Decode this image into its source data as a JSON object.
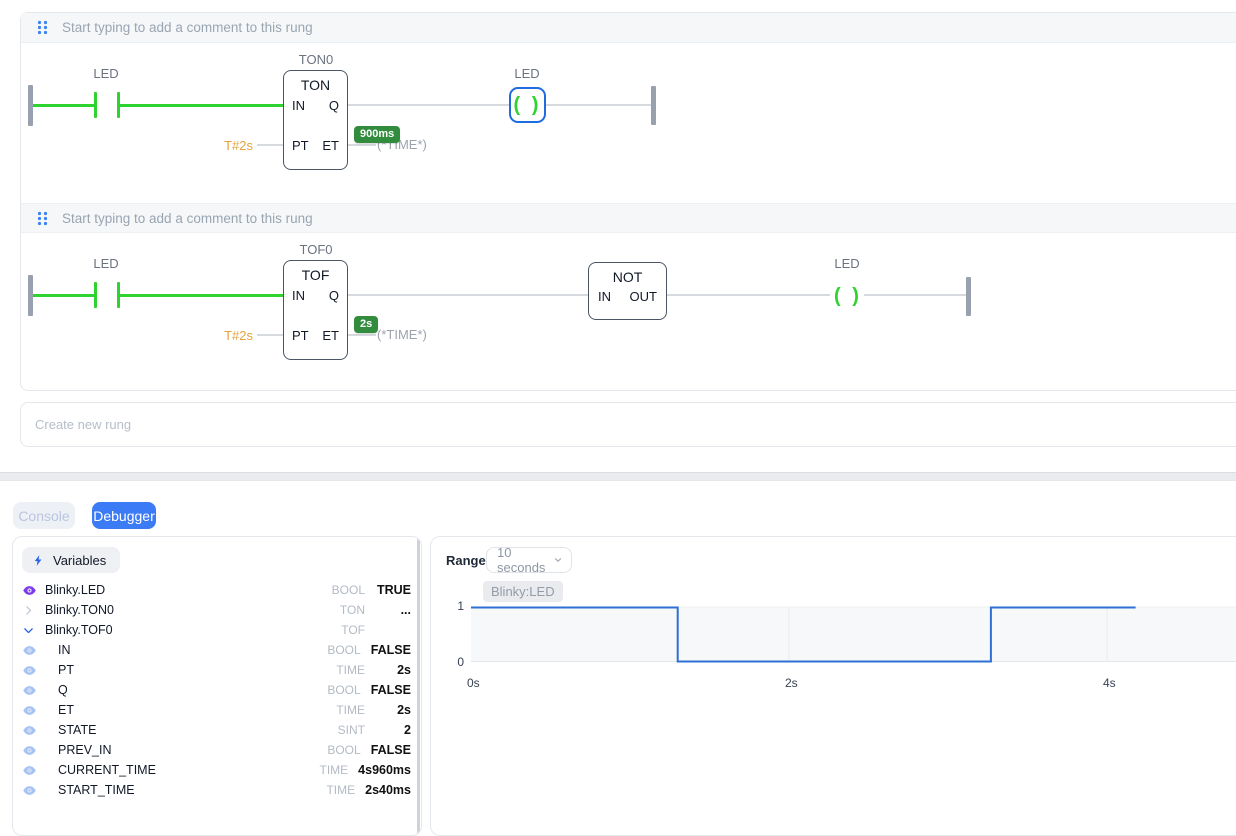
{
  "ladder": {
    "create_rung_placeholder": "Create new rung",
    "rungs": [
      {
        "comment": "Start typing to add a comment to this rung",
        "contact_label": "LED",
        "block": {
          "name": "TON0",
          "type": "TON",
          "port_in": "IN",
          "port_q": "Q",
          "port_pt": "PT",
          "port_et": "ET",
          "pt_value": "T#2s",
          "et_badge": "900ms",
          "et_comment": "(*TIME*)"
        },
        "coil_label": "LED",
        "coil_symbol": "( )"
      },
      {
        "comment": "Start typing to add a comment to this rung",
        "contact_label": "LED",
        "block": {
          "name": "TOF0",
          "type": "TOF",
          "port_in": "IN",
          "port_q": "Q",
          "port_pt": "PT",
          "port_et": "ET",
          "pt_value": "T#2s",
          "et_badge": "2s",
          "et_comment": "(*TIME*)"
        },
        "not_block": {
          "type": "NOT",
          "port_in": "IN",
          "port_out": "OUT"
        },
        "coil_label": "LED",
        "coil_symbol": "( )"
      }
    ]
  },
  "tabs": {
    "console_label": "Console",
    "debugger_label": "Debugger"
  },
  "variables_panel": {
    "header": "Variables",
    "rows": [
      {
        "name": "Blinky.LED",
        "type": "BOOL",
        "value": "TRUE",
        "icon": "eye-purple",
        "indent": 0
      },
      {
        "name": "Blinky.TON0",
        "type": "TON",
        "value": "...",
        "icon": "chevron-right",
        "indent": 0
      },
      {
        "name": "Blinky.TOF0",
        "type": "TOF",
        "value": "",
        "icon": "chevron-down",
        "indent": 0
      },
      {
        "name": "IN",
        "type": "BOOL",
        "value": "FALSE",
        "icon": "eye-blue",
        "indent": 1
      },
      {
        "name": "PT",
        "type": "TIME",
        "value": "2s",
        "icon": "eye-blue",
        "indent": 1
      },
      {
        "name": "Q",
        "type": "BOOL",
        "value": "FALSE",
        "icon": "eye-blue",
        "indent": 1
      },
      {
        "name": "ET",
        "type": "TIME",
        "value": "2s",
        "icon": "eye-blue",
        "indent": 1
      },
      {
        "name": "STATE",
        "type": "SINT",
        "value": "2",
        "icon": "eye-blue",
        "indent": 1
      },
      {
        "name": "PREV_IN",
        "type": "BOOL",
        "value": "FALSE",
        "icon": "eye-blue",
        "indent": 1
      },
      {
        "name": "CURRENT_TIME",
        "type": "TIME",
        "value": "4s960ms",
        "icon": "eye-blue",
        "indent": 1
      },
      {
        "name": "START_TIME",
        "type": "TIME",
        "value": "2s40ms",
        "icon": "eye-blue",
        "indent": 1
      }
    ]
  },
  "debugger_panel": {
    "range_label": "Range",
    "range_value": "10 seconds",
    "series_chip": "Blinky:LED"
  },
  "chart_data": {
    "type": "line",
    "title": "Blinky:LED",
    "step": true,
    "points": [
      [
        0,
        1
      ],
      [
        1.3,
        1
      ],
      [
        1.3,
        0
      ],
      [
        3.27,
        0
      ],
      [
        3.27,
        1
      ],
      [
        4.18,
        1
      ]
    ],
    "xticks": [
      {
        "t": 0,
        "label": "0s"
      },
      {
        "t": 2,
        "label": "2s"
      },
      {
        "t": 4,
        "label": "4s"
      }
    ],
    "yticks": [
      0,
      1
    ],
    "ylim": [
      0,
      1
    ],
    "visible_range_seconds": 10,
    "line_color": "#2e6fd4",
    "plot_bg": "#f7f8fa",
    "grid": true,
    "legend_position": "top-left"
  },
  "colors": {
    "energized_wire": "#2fd32f",
    "idle_wire": "#d6d9dd",
    "rail": "#98a1ad",
    "badge_green": "#318c3e",
    "pt_orange": "#e6a23c",
    "selection_blue": "#1f6be0",
    "accent_blue": "#3c7bf6",
    "eye_purple": "#7c3aed",
    "eye_blue": "#a7c3f3"
  }
}
